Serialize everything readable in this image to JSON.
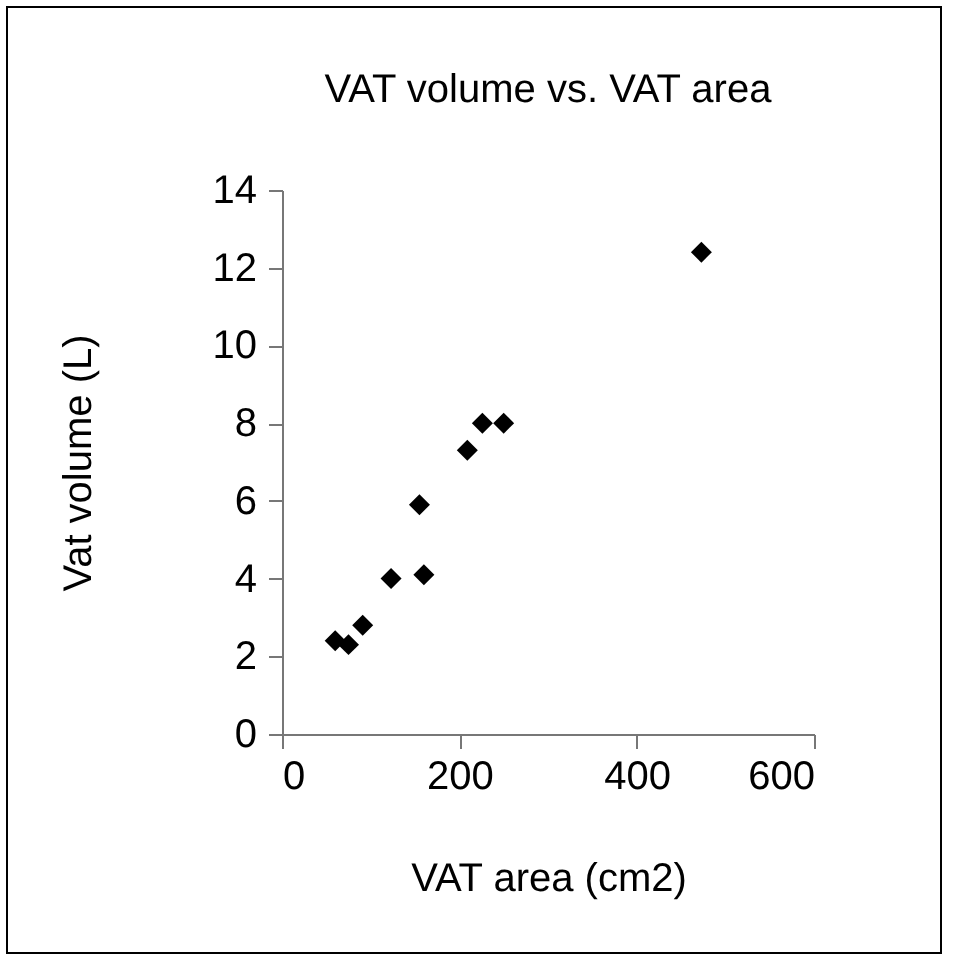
{
  "chart_data": {
    "type": "scatter",
    "title": "VAT volume vs.  VAT area",
    "xlabel": "VAT area (cm2)",
    "ylabel": "Vat volume (L)",
    "x": [
      60,
      75,
      91,
      123,
      155,
      160,
      209,
      226,
      250,
      473
    ],
    "series": [
      {
        "color": "#000000",
        "values": [
          2.4,
          2.3,
          2.8,
          4.0,
          5.9,
          4.1,
          7.3,
          8.0,
          8.0,
          12.4
        ]
      }
    ],
    "xlim": [
      0,
      600
    ],
    "xticks": [
      0,
      200,
      400,
      600
    ],
    "ylim": [
      0,
      14
    ],
    "yticks": [
      0,
      2,
      4,
      6,
      8,
      10,
      12,
      14
    ],
    "grid": false,
    "marker": "diamond"
  }
}
